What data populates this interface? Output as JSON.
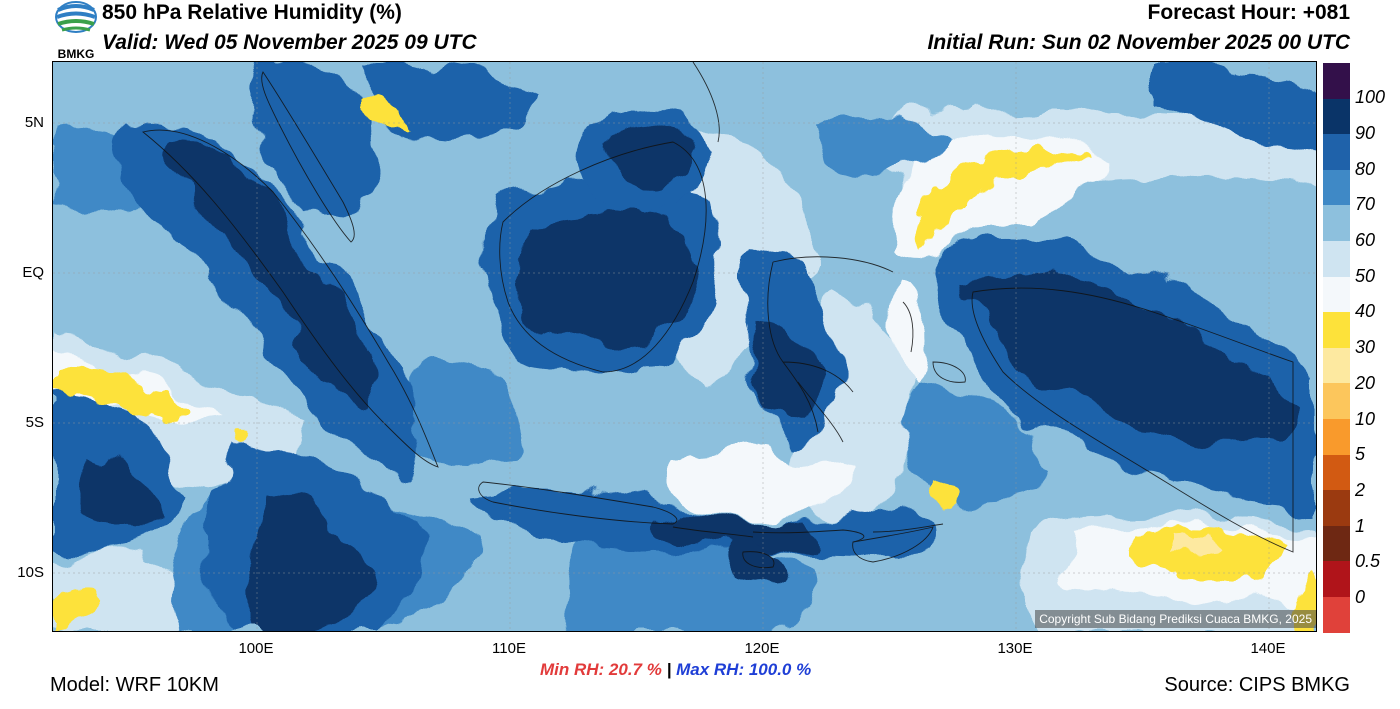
{
  "header": {
    "title": "850 hPa Relative Humidity (%)",
    "valid": "Valid: Wed 05 November 2025 09 UTC",
    "forecast_hour": "Forecast Hour: +081",
    "initial_run": "Initial Run: Sun 02 November 2025 00 UTC"
  },
  "logo": {
    "text": "BMKG",
    "icon": "bmkg-logo-icon"
  },
  "axes": {
    "lat_labels": [
      "5N",
      "EQ",
      "5S",
      "10S"
    ],
    "lon_labels": [
      "100E",
      "110E",
      "120E",
      "130E",
      "140E"
    ]
  },
  "colorbar": {
    "labels": [
      "100",
      "90",
      "80",
      "70",
      "60",
      "50",
      "40",
      "30",
      "20",
      "10",
      "5",
      "2",
      "1",
      "0.5",
      "0"
    ],
    "colors": [
      "#33104a",
      "#0a3468",
      "#1f62aa",
      "#3f89c6",
      "#8dc0dd",
      "#cfe4f1",
      "#f4f8fb",
      "#fde23a",
      "#fde9a0",
      "#fcc65c",
      "#f99a2c",
      "#d25a12",
      "#9b3a10",
      "#6e2813",
      "#b0141a",
      "#e0413a"
    ]
  },
  "palette": {
    "very_moist": "#0a3468",
    "moist": "#1f62aa",
    "mid": "#3f89c6",
    "light": "#8dc0dd",
    "pale": "#cfe4f1",
    "dry": "#fde23a"
  },
  "copyright": "Copyright Sub Bidang Prediksi Cuaca BMKG, 2025",
  "stats": {
    "min": "Min RH:  20.7 %",
    "sep": "|",
    "max": "Max RH: 100.0 %"
  },
  "footer": {
    "model": "Model: WRF 10KM",
    "source": "Source: CIPS BMKG"
  }
}
